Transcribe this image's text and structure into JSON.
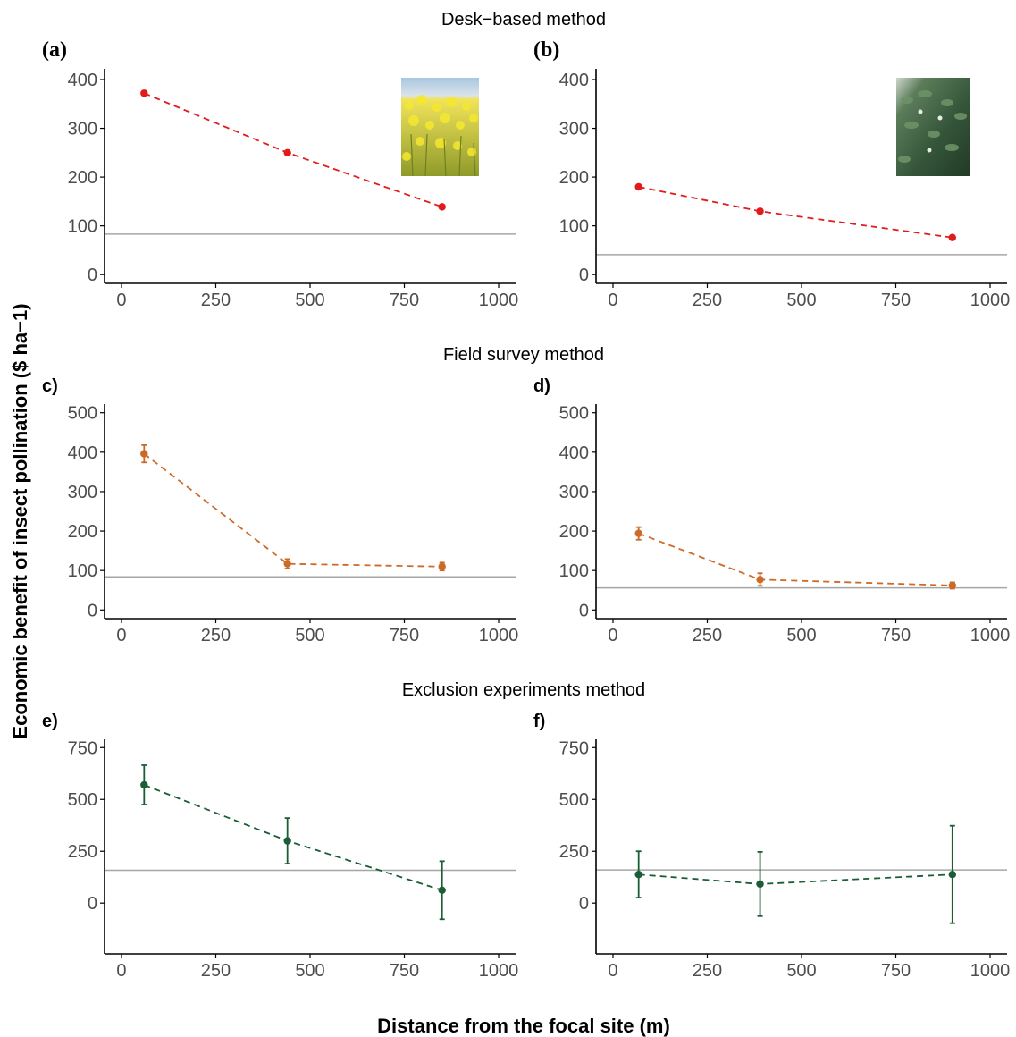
{
  "figure": {
    "section_titles": [
      "Desk−based method",
      "Field survey method",
      "Exclusion experiments method"
    ],
    "ylabel": "Economic benefit of insect pollination ($ ha−1)",
    "xlabel": "Distance from the focal site (m)"
  },
  "colors": {
    "desk": "#e31a1c",
    "field": "#cc6a28",
    "exclusion": "#1b5e35",
    "reference_line": "#a6a6a6",
    "axis": "#000000"
  },
  "chart_data": [
    {
      "panel_label": "(a)",
      "section": 0,
      "type": "line",
      "color_key": "desk",
      "photo": "rapeseed-crop-photo",
      "x": [
        60,
        440,
        850
      ],
      "y": [
        372,
        250,
        139
      ],
      "err": [
        0,
        0,
        0
      ],
      "reference": 83,
      "xlim": [
        -45,
        1045
      ],
      "ylim": [
        -18,
        422
      ],
      "xticks": [
        0,
        250,
        500,
        750,
        1000
      ],
      "yticks": [
        0,
        100,
        200,
        300,
        400
      ]
    },
    {
      "panel_label": "(b)",
      "section": 0,
      "type": "line",
      "color_key": "desk",
      "photo": "faba-bean-crop-photo",
      "x": [
        68,
        390,
        900
      ],
      "y": [
        180,
        130,
        76
      ],
      "err": [
        0,
        0,
        0
      ],
      "reference": 41,
      "xlim": [
        -45,
        1045
      ],
      "ylim": [
        -18,
        422
      ],
      "xticks": [
        0,
        250,
        500,
        750,
        1000
      ],
      "yticks": [
        0,
        100,
        200,
        300,
        400
      ]
    },
    {
      "panel_label": "c)",
      "section": 1,
      "type": "line",
      "color_key": "field",
      "x": [
        60,
        440,
        850
      ],
      "y": [
        396,
        117,
        110
      ],
      "err": [
        22,
        12,
        10
      ],
      "reference": 84,
      "xlim": [
        -45,
        1045
      ],
      "ylim": [
        -22,
        522
      ],
      "xticks": [
        0,
        250,
        500,
        750,
        1000
      ],
      "yticks": [
        0,
        100,
        200,
        300,
        400,
        500
      ]
    },
    {
      "panel_label": "d)",
      "section": 1,
      "type": "line",
      "color_key": "field",
      "x": [
        68,
        390,
        900
      ],
      "y": [
        194,
        77,
        62
      ],
      "err": [
        16,
        16,
        8
      ],
      "reference": 56,
      "xlim": [
        -45,
        1045
      ],
      "ylim": [
        -22,
        522
      ],
      "xticks": [
        0,
        250,
        500,
        750,
        1000
      ],
      "yticks": [
        0,
        100,
        200,
        300,
        400,
        500
      ]
    },
    {
      "panel_label": "e)",
      "section": 2,
      "type": "line",
      "color_key": "exclusion",
      "x": [
        60,
        440,
        850
      ],
      "y": [
        570,
        300,
        62
      ],
      "err": [
        95,
        110,
        140
      ],
      "reference": 158,
      "xlim": [
        -45,
        1045
      ],
      "ylim": [
        -245,
        790
      ],
      "xticks": [
        0,
        250,
        500,
        750,
        1000
      ],
      "yticks": [
        0,
        250,
        500,
        750
      ]
    },
    {
      "panel_label": "f)",
      "section": 2,
      "type": "line",
      "color_key": "exclusion",
      "x": [
        68,
        390,
        900
      ],
      "y": [
        138,
        92,
        138
      ],
      "err": [
        112,
        155,
        235
      ],
      "reference": 160,
      "xlim": [
        -45,
        1045
      ],
      "ylim": [
        -245,
        790
      ],
      "xticks": [
        0,
        250,
        500,
        750,
        1000
      ],
      "yticks": [
        0,
        250,
        500,
        750
      ]
    }
  ]
}
